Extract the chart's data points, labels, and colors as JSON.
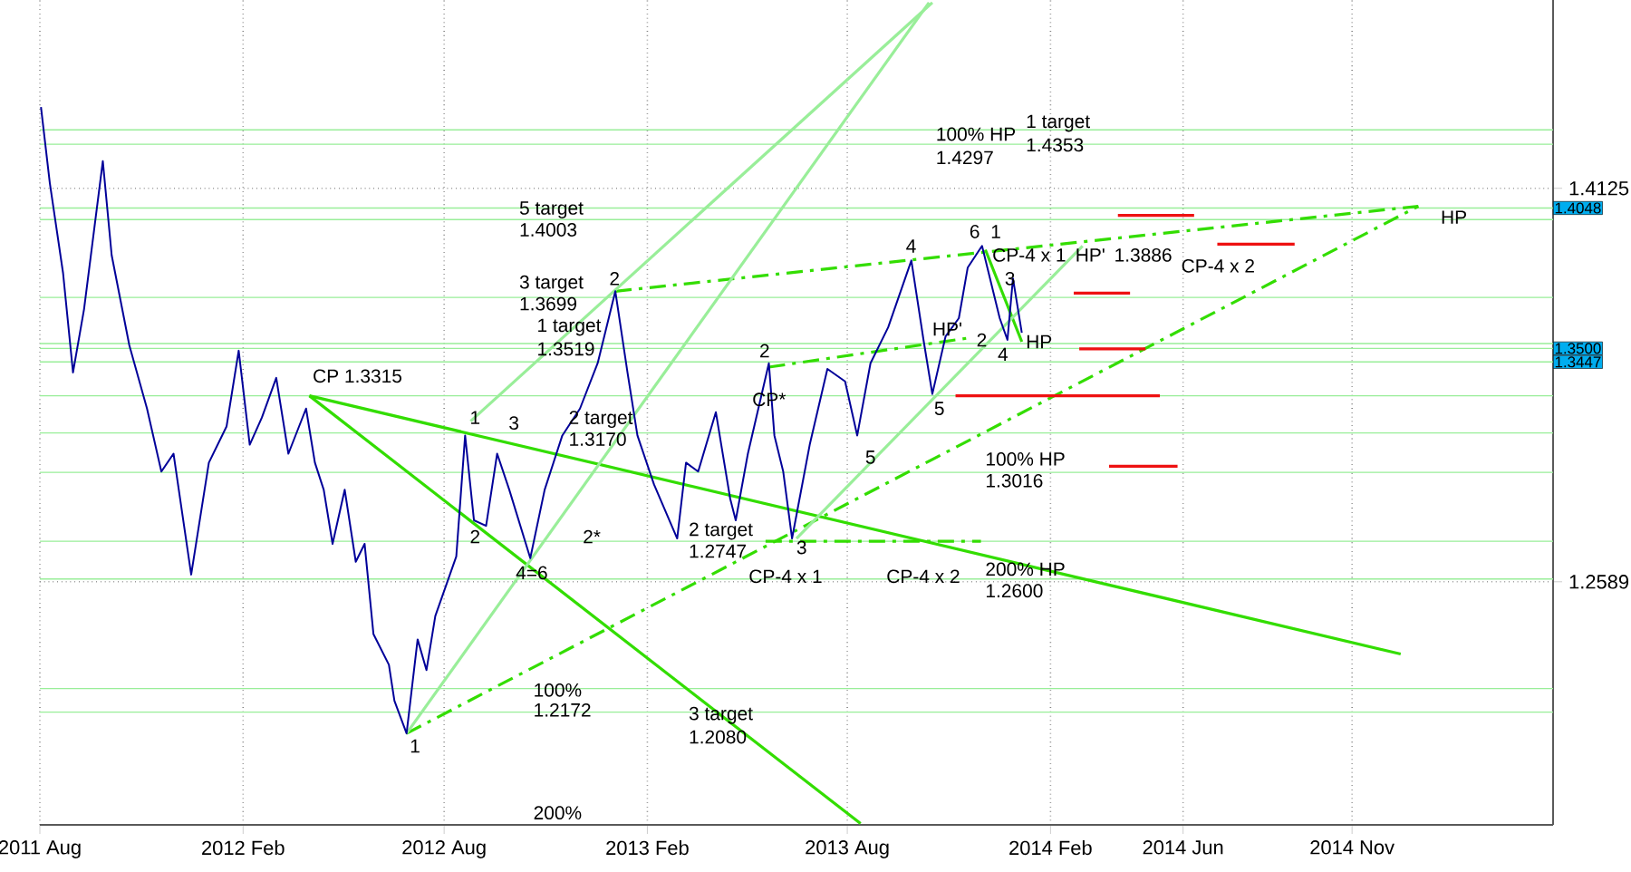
{
  "chart_data": {
    "type": "line",
    "marker": "none",
    "grid": true,
    "xlim": [
      "2011-08-01",
      "2015-05-02"
    ],
    "ylim": [
      1.164,
      1.486
    ],
    "xticks": [
      {
        "value": "2011-08-01",
        "label": "2011 Aug"
      },
      {
        "value": "2012-02-01",
        "label": "2012 Feb"
      },
      {
        "value": "2012-08-01",
        "label": "2012 Aug"
      },
      {
        "value": "2013-02-01",
        "label": "2013 Feb"
      },
      {
        "value": "2013-08-01",
        "label": "2013 Aug"
      },
      {
        "value": "2014-02-01",
        "label": "2014 Feb"
      },
      {
        "value": "2014-06-01",
        "label": "2014 Jun"
      },
      {
        "value": "2014-11-01",
        "label": "2014 Nov"
      }
    ],
    "yticks": [
      1.2589,
      1.4125
    ],
    "series": [
      {
        "color": "#000099",
        "line_style": "solid",
        "x": [
          "2011-08-02",
          "2011-08-10",
          "2011-08-22",
          "2011-08-31",
          "2011-09-10",
          "2011-09-27",
          "2011-10-05",
          "2011-10-21",
          "2011-11-06",
          "2011-11-19",
          "2011-11-30",
          "2011-12-16",
          "2012-01-01",
          "2012-01-17",
          "2012-01-28",
          "2012-02-07",
          "2012-02-18",
          "2012-03-02",
          "2012-03-13",
          "2012-03-29",
          "2012-04-06",
          "2012-04-14",
          "2012-04-22",
          "2012-05-03",
          "2012-05-13",
          "2012-05-21",
          "2012-05-29",
          "2012-06-12",
          "2012-06-17",
          "2012-06-28",
          "2012-07-08",
          "2012-07-16",
          "2012-07-24",
          "2012-08-12",
          "2012-08-20",
          "2012-08-28",
          "2012-09-08",
          "2012-09-18",
          "2012-09-29",
          "2012-10-18",
          "2012-10-31",
          "2012-11-16",
          "2012-12-02",
          "2012-12-18",
          "2013-01-03",
          "2013-01-14",
          "2013-01-23",
          "2013-02-07",
          "2013-02-28",
          "2013-03-08",
          "2013-03-19",
          "2013-04-04",
          "2013-04-17",
          "2013-04-22",
          "2013-05-03",
          "2013-05-22",
          "2013-05-27",
          "2013-06-04",
          "2013-06-12",
          "2013-06-28",
          "2013-07-14",
          "2013-07-30",
          "2013-08-10",
          "2013-08-22",
          "2013-09-07",
          "2013-09-28",
          "2013-10-09",
          "2013-10-17",
          "2013-10-29",
          "2013-11-10",
          "2013-11-18",
          "2013-12-01",
          "2013-12-17",
          "2013-12-24",
          "2013-12-29",
          "2014-01-06"
        ],
        "values": [
          1.4442,
          1.4146,
          1.3794,
          1.3406,
          1.3653,
          1.4231,
          1.3864,
          1.3512,
          1.3265,
          1.3019,
          1.3089,
          1.2617,
          1.3054,
          1.3195,
          1.3491,
          1.3124,
          1.323,
          1.3385,
          1.3089,
          1.3265,
          1.3054,
          1.2948,
          1.2737,
          1.2948,
          1.2667,
          1.2737,
          1.2385,
          1.2265,
          1.2124,
          1.1997,
          1.2364,
          1.2244,
          1.2455,
          1.2688,
          1.316,
          1.2829,
          1.2807,
          1.3089,
          1.2948,
          1.2681,
          1.2948,
          1.316,
          1.3265,
          1.3442,
          1.3723,
          1.3406,
          1.316,
          1.2969,
          1.2758,
          1.3054,
          1.3019,
          1.3251,
          1.2913,
          1.2829,
          1.3089,
          1.3442,
          1.316,
          1.3019,
          1.2758,
          1.3124,
          1.342,
          1.3371,
          1.316,
          1.3442,
          1.3582,
          1.3843,
          1.3533,
          1.3322,
          1.3547,
          1.3618,
          1.3815,
          1.39,
          1.3618,
          1.3533,
          1.3773,
          1.3561
        ]
      },
      {
        "color": "#33dd00",
        "line_style": "solid",
        "x": [
          "2012-04-01",
          "2014-12-15"
        ],
        "values": [
          1.3315,
          1.2307
        ]
      },
      {
        "color": "#33dd00",
        "line_style": "solid",
        "x": [
          "2012-04-01",
          "2013-08-13"
        ],
        "values": [
          1.3315,
          1.1645
        ]
      },
      {
        "color": "#33dd00",
        "line_style": "dashed",
        "x": [
          "2012-06-28",
          "2014-12-31"
        ],
        "values": [
          1.1997,
          1.4055
        ]
      },
      {
        "color": "#33dd00",
        "line_style": "dashed",
        "x": [
          "2013-01-03",
          "2014-12-31"
        ],
        "values": [
          1.3723,
          1.4055
        ]
      },
      {
        "color": "#33dd00",
        "line_style": "dashed",
        "x": [
          "2013-05-22",
          "2013-11-18"
        ],
        "values": [
          1.3427,
          1.354
        ]
      },
      {
        "color": "#33dd00",
        "line_style": "dashed",
        "x": [
          "2013-05-19",
          "2013-11-30"
        ],
        "values": [
          1.2747,
          1.2747
        ]
      },
      {
        "color": "#33dd00",
        "line_style": "solid",
        "x": [
          "2013-12-04",
          "2014-01-06"
        ],
        "values": [
          1.3885,
          1.3526
        ]
      },
      {
        "color": "#99ee99",
        "line_style": "solid",
        "x": [
          "2012-08-25",
          "2013-10-17"
        ],
        "values": [
          1.3216,
          1.485
        ]
      },
      {
        "color": "#99ee99",
        "line_style": "solid",
        "x": [
          "2012-06-28",
          "2013-10-14"
        ],
        "values": [
          1.1997,
          1.485
        ]
      },
      {
        "color": "#99ee99",
        "line_style": "solid",
        "x": [
          "2013-06-16",
          "2014-03-02"
        ],
        "values": [
          1.2758,
          1.39
        ]
      },
      {
        "color": "#ee1111",
        "line_style": "solid",
        "x": [
          "2014-04-03",
          "2014-06-11"
        ],
        "values": [
          1.4019,
          1.4019
        ]
      },
      {
        "color": "#ee1111",
        "line_style": "solid",
        "x": [
          "2014-07-02",
          "2014-09-10"
        ],
        "values": [
          1.3907,
          1.3907
        ]
      },
      {
        "color": "#ee1111",
        "line_style": "solid",
        "x": [
          "2014-02-22",
          "2014-04-14"
        ],
        "values": [
          1.3716,
          1.3716
        ]
      },
      {
        "color": "#ee1111",
        "line_style": "solid",
        "x": [
          "2014-02-27",
          "2014-04-28"
        ],
        "values": [
          1.3498,
          1.3498
        ]
      },
      {
        "color": "#ee1111",
        "line_style": "solid",
        "x": [
          "2013-11-07",
          "2014-05-11"
        ],
        "values": [
          1.3315,
          1.3315
        ]
      },
      {
        "color": "#ee1111",
        "line_style": "solid",
        "x": [
          "2014-03-26",
          "2014-05-27"
        ],
        "values": [
          1.304,
          1.304
        ]
      }
    ],
    "ref_lines": [
      {
        "axis": "y",
        "value": 1.4353,
        "color": "#99ee99"
      },
      {
        "axis": "y",
        "value": 1.4297,
        "color": "#99ee99"
      },
      {
        "axis": "y",
        "value": 1.4003,
        "color": "#99ee99"
      },
      {
        "axis": "y",
        "value": 1.3699,
        "color": "#99ee99"
      },
      {
        "axis": "y",
        "value": 1.3519,
        "color": "#99ee99"
      },
      {
        "axis": "y",
        "value": 1.3315,
        "color": "#99ee99"
      },
      {
        "axis": "y",
        "value": 1.317,
        "color": "#99ee99"
      },
      {
        "axis": "y",
        "value": 1.3016,
        "color": "#99ee99"
      },
      {
        "axis": "y",
        "value": 1.2747,
        "color": "#99ee99"
      },
      {
        "axis": "y",
        "value": 1.26,
        "color": "#99ee99"
      },
      {
        "axis": "y",
        "value": 1.2172,
        "color": "#99ee99"
      },
      {
        "axis": "y",
        "value": 1.208,
        "color": "#99ee99"
      },
      {
        "axis": "y",
        "value": 1.4048,
        "label": "1.4048",
        "color": "#99ee99"
      },
      {
        "axis": "y",
        "value": 1.35,
        "label": "1.3500",
        "color": "#99ee99"
      },
      {
        "axis": "y",
        "value": 1.3447,
        "label": "1.3447",
        "color": "#99ee99"
      }
    ],
    "annotations": [
      "5 target",
      "1.4003",
      "3 target",
      "1.3699",
      "1 target",
      "1.3519",
      "2 target",
      "1.3170",
      "2 target",
      "1.2747",
      "100%",
      "1.2172",
      "3 target",
      "1.2080",
      "200%",
      "100% HP",
      "1.4297",
      "1 target",
      "1.4353",
      "100% HP",
      "1.3016",
      "200% HP",
      "1.2600",
      "CP-4 x 2",
      "CP-4 x 1",
      "CP 1.3315",
      "CP-4 x 1",
      "HP'",
      "1.3886",
      "CP-4 x 2",
      "HP",
      "HP",
      "HP'",
      "1",
      "1",
      "2",
      "3",
      "4=6",
      "2*",
      "2",
      "2",
      "CP*",
      "3",
      "5",
      "4",
      "6",
      "1",
      "3",
      "2",
      "4",
      "5"
    ]
  }
}
